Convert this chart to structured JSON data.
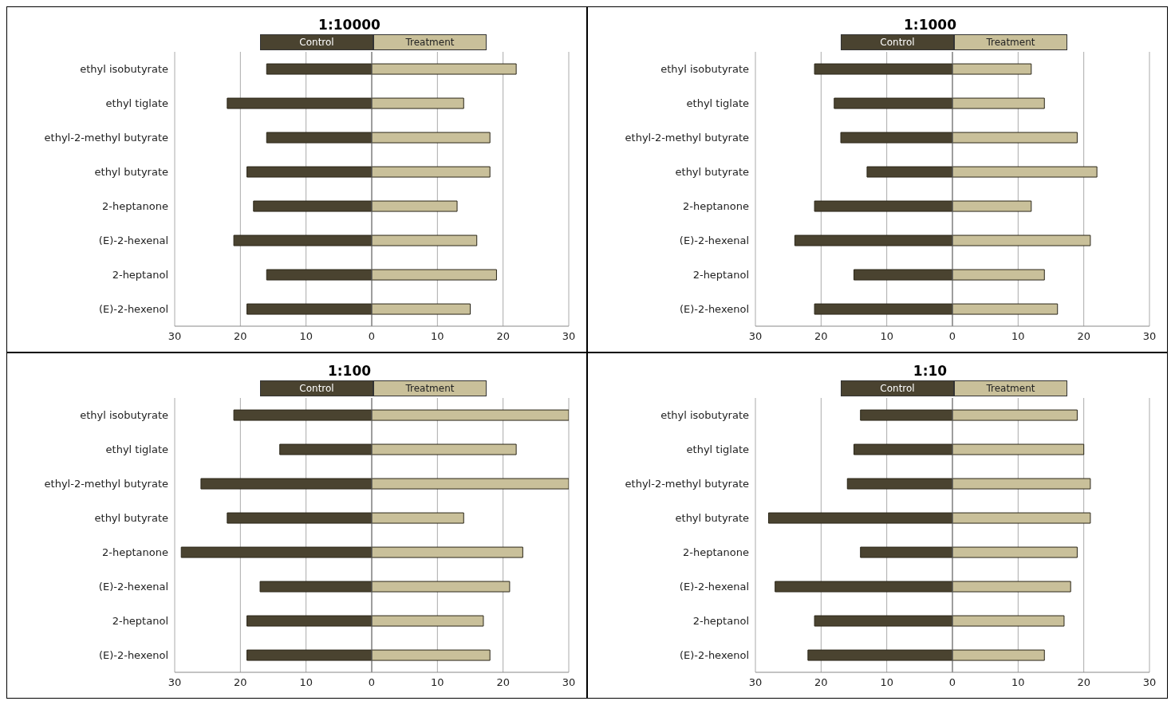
{
  "chart_data": [
    {
      "type": "bar",
      "title": "1:10000",
      "orientation": "horizontal",
      "stacked": true,
      "categories": [
        "ethyl isobutyrate",
        "ethyl tiglate",
        "ethyl-2-methyl butyrate",
        "ethyl butyrate",
        "2-heptanone",
        "(E)-2-hexenal",
        "2-heptanol",
        "(E)-2-hexenol"
      ],
      "series": [
        {
          "name": "Control",
          "color": "#4a4330",
          "values": [
            -16,
            -22,
            -16,
            -19,
            -18,
            -21,
            -16,
            -19
          ]
        },
        {
          "name": "Treatment",
          "color": "#c9c09a",
          "values": [
            22,
            14,
            18,
            18,
            13,
            16,
            19,
            15
          ]
        }
      ],
      "xlim": [
        -30,
        30
      ],
      "xticks": [
        {
          "value": -30,
          "label": "30"
        },
        {
          "value": -20,
          "label": "20"
        },
        {
          "value": -10,
          "label": "10"
        },
        0,
        10,
        20,
        30
      ],
      "grid": "x",
      "legend": "top"
    },
    {
      "type": "bar",
      "title": "1:1000",
      "orientation": "horizontal",
      "stacked": true,
      "categories": [
        "ethyl isobutyrate",
        "ethyl tiglate",
        "ethyl-2-methyl butyrate",
        "ethyl butyrate",
        "2-heptanone",
        "(E)-2-hexenal",
        "2-heptanol",
        "(E)-2-hexenol"
      ],
      "series": [
        {
          "name": "Control",
          "color": "#4a4330",
          "values": [
            -21,
            -18,
            -17,
            -13,
            -21,
            -24,
            -15,
            -21
          ]
        },
        {
          "name": "Treatment",
          "color": "#c9c09a",
          "values": [
            12,
            14,
            19,
            22,
            12,
            21,
            14,
            16
          ]
        }
      ],
      "xlim": [
        -30,
        30
      ],
      "xticks": [
        {
          "value": -30,
          "label": "30"
        },
        {
          "value": -20,
          "label": "20"
        },
        {
          "value": -10,
          "label": "10"
        },
        0,
        10,
        20,
        30
      ],
      "grid": "x",
      "legend": "top"
    },
    {
      "type": "bar",
      "title": "1:100",
      "orientation": "horizontal",
      "stacked": true,
      "categories": [
        "ethyl isobutyrate",
        "ethyl tiglate",
        "ethyl-2-methyl butyrate",
        "ethyl butyrate",
        "2-heptanone",
        "(E)-2-hexenal",
        "2-heptanol",
        "(E)-2-hexenol"
      ],
      "series": [
        {
          "name": "Control",
          "color": "#4a4330",
          "values": [
            -21,
            -14,
            -26,
            -22,
            -29,
            -17,
            -19,
            -19
          ]
        },
        {
          "name": "Treatment",
          "color": "#c9c09a",
          "values": [
            30,
            22,
            30,
            14,
            23,
            21,
            17,
            18
          ]
        }
      ],
      "xlim": [
        -30,
        30
      ],
      "xticks": [
        {
          "value": -30,
          "label": "30"
        },
        {
          "value": -20,
          "label": "20"
        },
        {
          "value": -10,
          "label": "10"
        },
        0,
        10,
        20,
        30
      ],
      "grid": "x",
      "legend": "top"
    },
    {
      "type": "bar",
      "title": "1:10",
      "orientation": "horizontal",
      "stacked": true,
      "categories": [
        "ethyl isobutyrate",
        "ethyl tiglate",
        "ethyl-2-methyl butyrate",
        "ethyl butyrate",
        "2-heptanone",
        "(E)-2-hexenal",
        "2-heptanol",
        "(E)-2-hexenol"
      ],
      "series": [
        {
          "name": "Control",
          "color": "#4a4330",
          "values": [
            -14,
            -15,
            -16,
            -28,
            -14,
            -27,
            -21,
            -22
          ]
        },
        {
          "name": "Treatment",
          "color": "#c9c09a",
          "values": [
            19,
            20,
            21,
            21,
            19,
            18,
            17,
            14
          ]
        }
      ],
      "xlim": [
        -30,
        30
      ],
      "xticks": [
        {
          "value": -30,
          "label": "30"
        },
        {
          "value": -20,
          "label": "20"
        },
        {
          "value": -10,
          "label": "10"
        },
        0,
        10,
        20,
        30
      ],
      "grid": "x",
      "legend": "top"
    }
  ]
}
